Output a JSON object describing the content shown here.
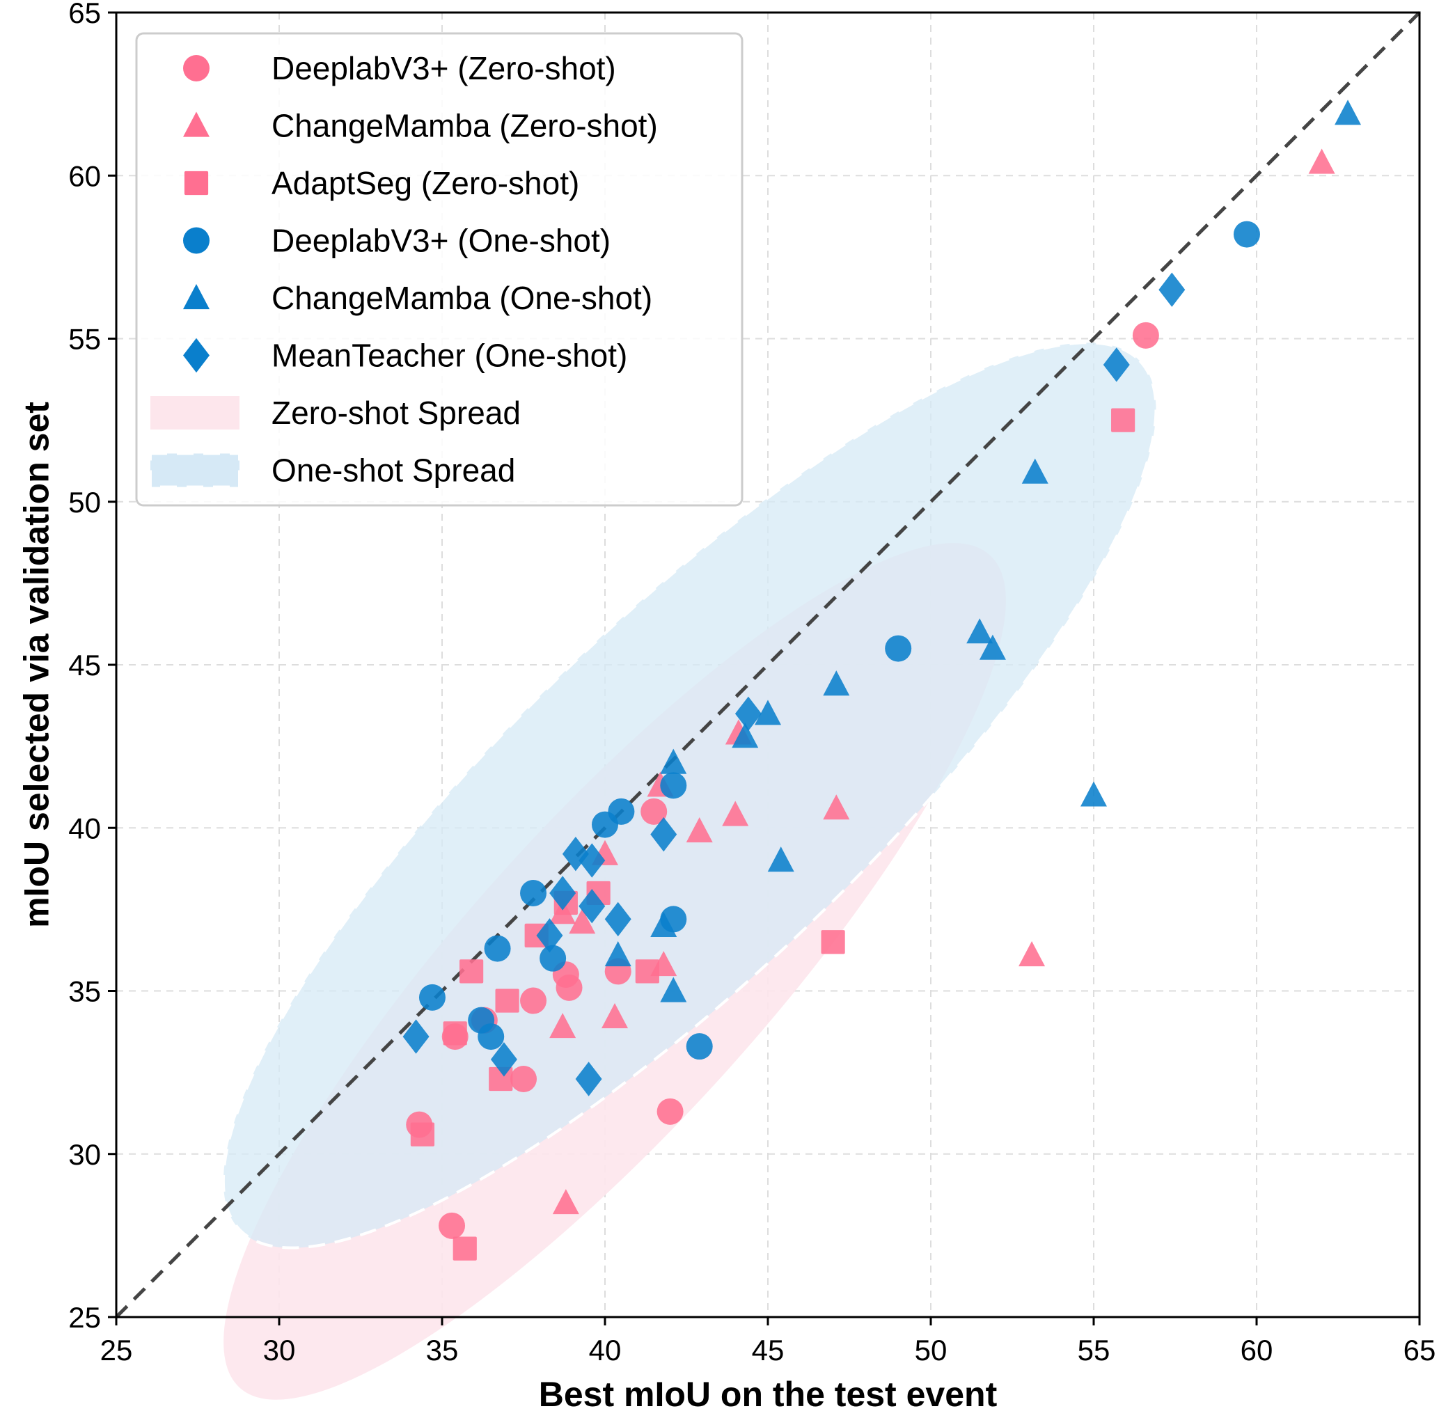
{
  "chart_data": {
    "type": "scatter",
    "title": "",
    "xlabel": "Best mIoU on the test event",
    "ylabel": "mIoU selected via validation set",
    "xlim": [
      25,
      65
    ],
    "ylim": [
      25,
      65
    ],
    "xticks": [
      "25",
      "30",
      "35",
      "40",
      "45",
      "50",
      "55",
      "60",
      "65"
    ],
    "yticks": [
      "25",
      "30",
      "35",
      "40",
      "45",
      "50",
      "55",
      "60",
      "65"
    ],
    "grid": true,
    "legend_position": "top-left",
    "reference_line": {
      "label": "y = x",
      "style": "dashed",
      "color": "#444444"
    },
    "colors": {
      "zero_shot": "#ff6f91",
      "one_shot": "#0a7fcc",
      "zero_spread": "#fde6ec",
      "one_spread": "#d6e9f6"
    },
    "series": [
      {
        "name": "DeeplabV3+ (Zero-shot)",
        "marker": "circle",
        "group": "zero",
        "points": [
          [
            56.6,
            55.1
          ],
          [
            41.5,
            40.5
          ],
          [
            37.8,
            34.7
          ],
          [
            38.8,
            35.5
          ],
          [
            38.9,
            35.1
          ],
          [
            40.4,
            35.6
          ],
          [
            35.4,
            33.6
          ],
          [
            37.5,
            32.3
          ],
          [
            34.3,
            30.9
          ],
          [
            42.0,
            31.3
          ],
          [
            35.3,
            27.8
          ],
          [
            36.3,
            34.1
          ]
        ]
      },
      {
        "name": "ChangeMamba (Zero-shot)",
        "marker": "triangle",
        "group": "zero",
        "points": [
          [
            62.0,
            60.4
          ],
          [
            47.1,
            40.6
          ],
          [
            53.1,
            36.1
          ],
          [
            44.0,
            40.4
          ],
          [
            42.9,
            39.9
          ],
          [
            41.7,
            41.3
          ],
          [
            44.1,
            42.9
          ],
          [
            40.0,
            39.2
          ],
          [
            39.3,
            37.1
          ],
          [
            38.7,
            33.9
          ],
          [
            40.3,
            34.2
          ],
          [
            41.8,
            35.8
          ],
          [
            38.8,
            28.5
          ],
          [
            38.7,
            37.4
          ]
        ]
      },
      {
        "name": "AdaptSeg (Zero-shot)",
        "marker": "square",
        "group": "zero",
        "points": [
          [
            55.9,
            52.5
          ],
          [
            47.0,
            36.5
          ],
          [
            39.8,
            38.0
          ],
          [
            37.9,
            36.7
          ],
          [
            35.9,
            35.6
          ],
          [
            37.0,
            34.7
          ],
          [
            41.3,
            35.6
          ],
          [
            35.4,
            33.7
          ],
          [
            36.8,
            32.3
          ],
          [
            34.4,
            30.6
          ],
          [
            35.7,
            27.1
          ],
          [
            38.8,
            37.7
          ]
        ]
      },
      {
        "name": "DeeplabV3+ (One-shot)",
        "marker": "circle",
        "group": "one",
        "points": [
          [
            59.7,
            58.2
          ],
          [
            49.0,
            45.5
          ],
          [
            42.1,
            41.3
          ],
          [
            40.5,
            40.5
          ],
          [
            40.0,
            40.1
          ],
          [
            37.8,
            38.0
          ],
          [
            42.1,
            37.2
          ],
          [
            36.7,
            36.3
          ],
          [
            38.4,
            36.0
          ],
          [
            34.7,
            34.8
          ],
          [
            36.2,
            34.1
          ],
          [
            36.5,
            33.6
          ],
          [
            42.9,
            33.3
          ]
        ]
      },
      {
        "name": "ChangeMamba (One-shot)",
        "marker": "triangle",
        "group": "one",
        "points": [
          [
            62.8,
            61.9
          ],
          [
            53.2,
            50.9
          ],
          [
            51.5,
            46.0
          ],
          [
            51.9,
            45.5
          ],
          [
            47.1,
            44.4
          ],
          [
            45.0,
            43.5
          ],
          [
            44.3,
            42.8
          ],
          [
            42.1,
            42.0
          ],
          [
            45.4,
            39.0
          ],
          [
            55.0,
            41.0
          ],
          [
            40.4,
            36.1
          ],
          [
            42.1,
            35.0
          ],
          [
            41.8,
            37.0
          ]
        ]
      },
      {
        "name": "MeanTeacher (One-shot)",
        "marker": "diamond",
        "group": "one",
        "points": [
          [
            57.4,
            56.5
          ],
          [
            55.7,
            54.2
          ],
          [
            44.4,
            43.5
          ],
          [
            41.8,
            39.8
          ],
          [
            39.1,
            39.2
          ],
          [
            39.6,
            39.0
          ],
          [
            38.7,
            38.0
          ],
          [
            39.6,
            37.6
          ],
          [
            40.4,
            37.2
          ],
          [
            38.3,
            36.7
          ],
          [
            34.2,
            33.6
          ],
          [
            36.9,
            32.9
          ],
          [
            39.5,
            32.3
          ]
        ]
      }
    ],
    "spreads": [
      {
        "name": "Zero-shot Spread",
        "group": "zero",
        "center": [
          40.3,
          35.6
        ],
        "semi_major": 17.2,
        "semi_minor": 4.6,
        "angle_deg": 48
      },
      {
        "name": "One-shot Spread",
        "group": "one",
        "center": [
          42.6,
          41.0
        ],
        "semi_major": 19.2,
        "semi_minor": 5.4,
        "angle_deg": 44
      }
    ],
    "legend": [
      {
        "label": "DeeplabV3+ (Zero-shot)",
        "marker": "circle",
        "group": "zero"
      },
      {
        "label": "ChangeMamba (Zero-shot)",
        "marker": "triangle",
        "group": "zero"
      },
      {
        "label": "AdaptSeg (Zero-shot)",
        "marker": "square",
        "group": "zero"
      },
      {
        "label": "DeeplabV3+ (One-shot)",
        "marker": "circle",
        "group": "one"
      },
      {
        "label": "ChangeMamba (One-shot)",
        "marker": "triangle",
        "group": "one"
      },
      {
        "label": "MeanTeacher (One-shot)",
        "marker": "diamond",
        "group": "one"
      },
      {
        "label": "Zero-shot Spread",
        "marker": "patch",
        "group": "zero"
      },
      {
        "label": "One-shot Spread",
        "marker": "patch-dashed",
        "group": "one"
      }
    ]
  }
}
